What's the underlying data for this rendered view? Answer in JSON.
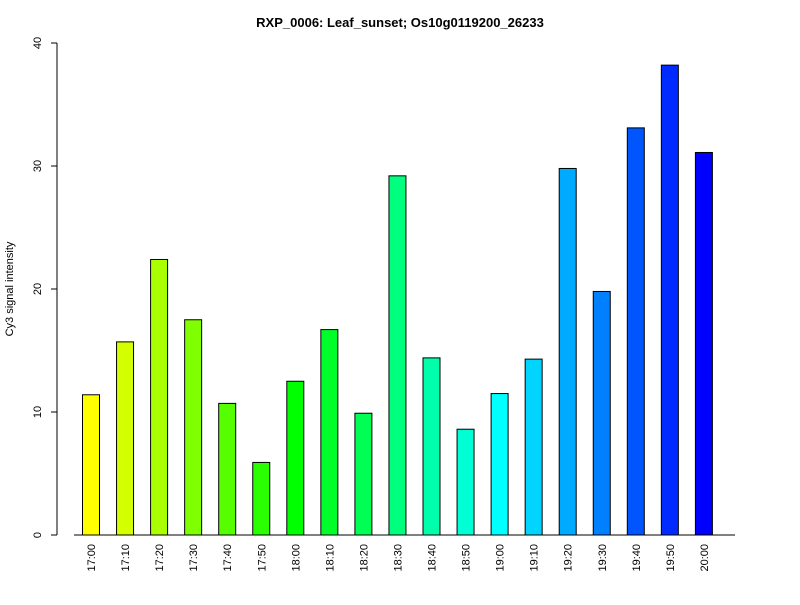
{
  "chart_data": {
    "type": "bar",
    "title": "RXP_0006: Leaf_sunset; Os10g0119200_26233",
    "xlabel": "",
    "ylabel": "Cy3 signal intensity",
    "ylim": [
      0,
      40
    ],
    "yticks": [
      0,
      10,
      20,
      30,
      40
    ],
    "grid": false,
    "legend": "none",
    "categories": [
      "17:00",
      "17:10",
      "17:20",
      "17:30",
      "17:40",
      "17:50",
      "18:00",
      "18:10",
      "18:20",
      "18:30",
      "18:40",
      "18:50",
      "19:00",
      "19:10",
      "19:20",
      "19:30",
      "19:40",
      "19:50",
      "20:00"
    ],
    "values": [
      11.4,
      15.7,
      22.4,
      17.5,
      10.7,
      5.9,
      12.5,
      16.7,
      9.9,
      29.2,
      14.4,
      8.6,
      11.5,
      14.3,
      29.8,
      19.8,
      33.1,
      38.2,
      31.1
    ],
    "colors": [
      "#FFFF00",
      "#D4FF00",
      "#AAFF00",
      "#7FFF00",
      "#55FF00",
      "#2AFF00",
      "#00FF00",
      "#00FF2A",
      "#00FF55",
      "#00FF7F",
      "#00FFAA",
      "#00FFD4",
      "#00FFFF",
      "#00D4FF",
      "#00AAFF",
      "#007FFF",
      "#0055FF",
      "#002AFF",
      "#0000FF"
    ]
  }
}
